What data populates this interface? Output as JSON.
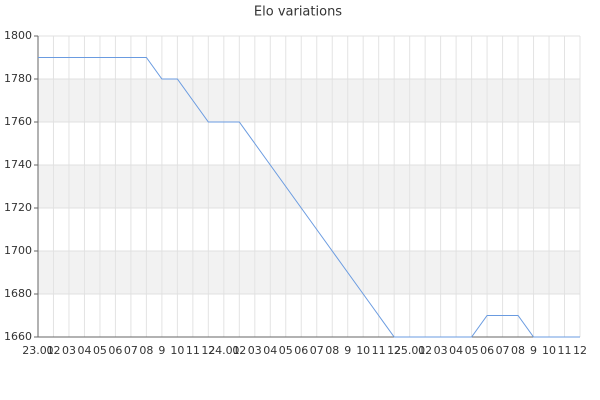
{
  "chart_data": {
    "type": "line",
    "title": "Elo variations",
    "categories": [
      "23.01",
      "02",
      "03",
      "04",
      "05",
      "06",
      "07",
      "08",
      "9",
      "10",
      "11",
      "12",
      "24.01",
      "02",
      "03",
      "04",
      "05",
      "06",
      "07",
      "08",
      "9",
      "10",
      "11",
      "12",
      "25.01",
      "02",
      "03",
      "04",
      "05",
      "06",
      "07",
      "08",
      "9",
      "10",
      "11",
      "12"
    ],
    "series": [
      {
        "name": "Elo",
        "color": "#6a9be0",
        "values": [
          1790,
          1790,
          1790,
          1790,
          1790,
          1790,
          1790,
          1790,
          1780,
          1780,
          1770,
          1760,
          1760,
          1760,
          1750,
          1740,
          1730,
          1720,
          1710,
          1700,
          1690,
          1680,
          1670,
          1660,
          1660,
          1660,
          1660,
          1660,
          1660,
          1670,
          1670,
          1670,
          1660,
          1660,
          1660,
          1660
        ]
      }
    ],
    "ylim": [
      1660,
      1800
    ],
    "yticks": [
      1660,
      1680,
      1700,
      1720,
      1740,
      1760,
      1780,
      1800
    ],
    "grid": true
  }
}
